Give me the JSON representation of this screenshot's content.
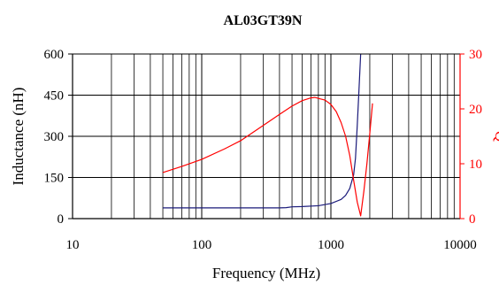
{
  "chart_data": {
    "type": "line",
    "title": "AL03GT39N",
    "xlabel": "Frequency (MHz)",
    "ylabel_left": "Inductance (nH)",
    "ylabel_right": "Q",
    "xscale": "log",
    "xlim": [
      10,
      10000
    ],
    "ylim_left": [
      0,
      600
    ],
    "ylim_right": [
      0,
      30
    ],
    "xticks": [
      10,
      100,
      1000,
      10000
    ],
    "xtick_labels": [
      "10",
      "100",
      "1000",
      "10000"
    ],
    "yticks_left": [
      0,
      150,
      300,
      450,
      600
    ],
    "ytick_labels_left": [
      "0",
      "150",
      "300",
      "450",
      "600"
    ],
    "yticks_right": [
      0,
      10,
      20,
      30
    ],
    "ytick_labels_right": [
      "0",
      "10",
      "20",
      "30"
    ],
    "grid": true,
    "colors": {
      "inductance": "#1a1a7a",
      "q": "#ff0000",
      "right_axis": "#ff0000",
      "grid": "#000000"
    },
    "series": [
      {
        "key": "inductance",
        "axis": "left",
        "x": [
          50,
          100,
          200,
          300,
          400,
          450,
          500,
          600,
          800,
          1000,
          1200,
          1300,
          1400,
          1500,
          1550,
          1600,
          1650,
          1700
        ],
        "y": [
          39,
          39,
          39,
          39,
          39,
          40,
          43,
          44,
          47,
          55,
          70,
          85,
          110,
          160,
          220,
          340,
          470,
          600
        ]
      },
      {
        "key": "q",
        "axis": "right",
        "x": [
          50,
          70,
          100,
          150,
          200,
          300,
          400,
          500,
          600,
          700,
          750,
          800,
          900,
          1000,
          1100,
          1200,
          1300,
          1400,
          1500,
          1600,
          1700,
          1800,
          1900,
          2000,
          2100
        ],
        "y": [
          8.4,
          9.5,
          10.8,
          12.7,
          14.2,
          17.0,
          19.0,
          20.5,
          21.5,
          22.0,
          22.1,
          21.9,
          21.6,
          20.8,
          19.5,
          17.5,
          15.0,
          11.5,
          7.0,
          3.0,
          0.5,
          5.0,
          10.0,
          15.5,
          21.0
        ]
      }
    ]
  }
}
